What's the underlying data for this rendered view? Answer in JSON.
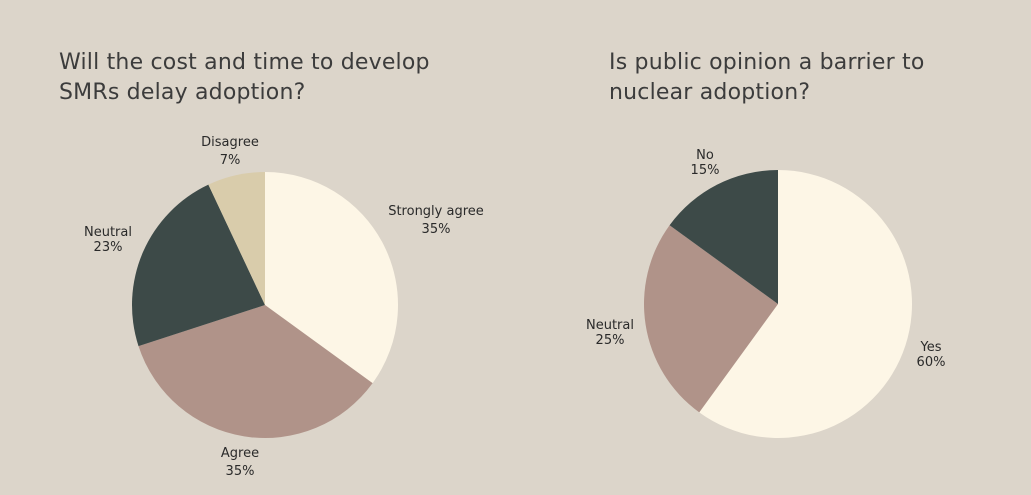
{
  "colors": {
    "background": "#dcd5ca",
    "cream": "#fdf6e6",
    "mauve": "#b09389",
    "dark_slate": "#3d4a48",
    "sand": "#d9ccab"
  },
  "chart_data": [
    {
      "type": "pie",
      "title_lines": [
        "Will the cost and time to develop",
        "SMRs delay adoption?"
      ],
      "slices": [
        {
          "label": "Strongly agree",
          "value": 35,
          "display": "35%",
          "color": "#fdf6e6"
        },
        {
          "label": "Agree",
          "value": 35,
          "display": "35%",
          "color": "#b09389"
        },
        {
          "label": "Neutral",
          "value": 23,
          "display": "23%",
          "color": "#3d4a48"
        },
        {
          "label": "Disagree",
          "value": 7,
          "display": "7%",
          "color": "#d9ccab"
        }
      ]
    },
    {
      "type": "pie",
      "title_lines": [
        "Is public opinion a barrier to",
        "nuclear adoption?"
      ],
      "slices": [
        {
          "label": "Yes",
          "value": 60,
          "display": "60%",
          "color": "#fdf6e6"
        },
        {
          "label": "Neutral",
          "value": 25,
          "display": "25%",
          "color": "#b09389"
        },
        {
          "label": "No",
          "value": 15,
          "display": "15%",
          "color": "#3d4a48"
        }
      ]
    }
  ]
}
